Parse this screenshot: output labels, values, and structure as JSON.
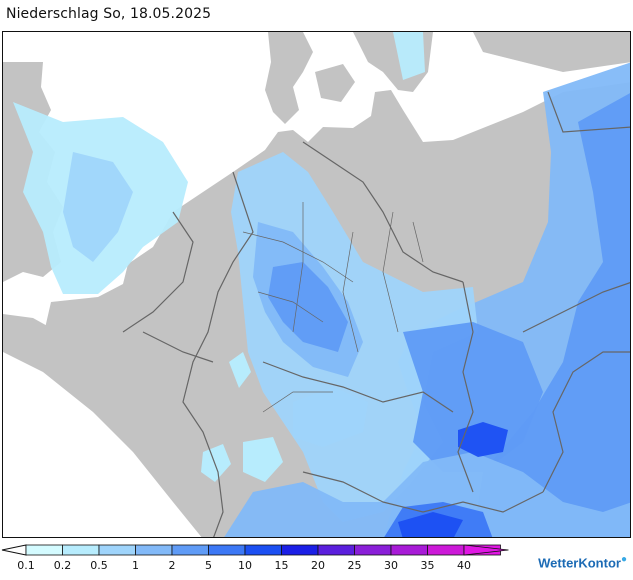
{
  "title": "Niederschlag So, 18.05.2025",
  "legend": {
    "unit_hint": "",
    "classes": [
      {
        "label": "0.1",
        "color": "#d4fbff"
      },
      {
        "label": "0.2",
        "color": "#b7ecfd"
      },
      {
        "label": "0.5",
        "color": "#9fd4fb"
      },
      {
        "label": "1",
        "color": "#82b9f8"
      },
      {
        "label": "2",
        "color": "#5f9bf6"
      },
      {
        "label": "5",
        "color": "#3c78f5"
      },
      {
        "label": "10",
        "color": "#1b4ff2"
      },
      {
        "label": "15",
        "color": "#1b1fe6"
      },
      {
        "label": "20",
        "color": "#5b1fdd"
      },
      {
        "label": "25",
        "color": "#8a1fd8"
      },
      {
        "label": "30",
        "color": "#a81bd7"
      },
      {
        "label": "35",
        "color": "#cc19d8"
      },
      {
        "label": "40",
        "color": "#e017e3"
      }
    ]
  },
  "brand": "WetterKontor",
  "map": {
    "land_color": "#c3c3c3",
    "sea_color": "#ffffff",
    "border_color": "#666666",
    "region_focus": "Deutschland"
  }
}
